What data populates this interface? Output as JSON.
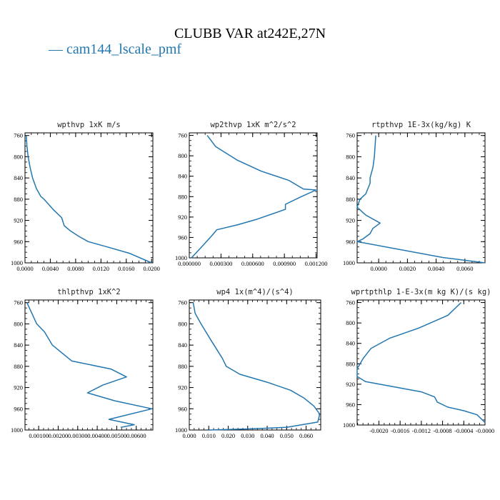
{
  "figure": {
    "title": "CLUBB VAR at242E,27N",
    "legend": {
      "marker": "—",
      "label": "cam144_lscale_pmf"
    },
    "colors": {
      "line": "#2277b0",
      "axis": "#000000"
    }
  },
  "chart_data": [
    {
      "type": "line",
      "title": "wpthvp  1xK m/s",
      "xlim": [
        0,
        0.0202
      ],
      "ylim": [
        1000,
        755
      ],
      "xticks": [
        0,
        0.004,
        0.008,
        0.012,
        0.016,
        0.02
      ],
      "xtick_labels": [
        "0.0000",
        "0.0040",
        "0.0080",
        "0.0120",
        "0.0160",
        "0.0200"
      ],
      "yticks": [
        760,
        800,
        840,
        880,
        920,
        960,
        1000
      ],
      "ytick_labels": [
        "760",
        "800",
        "840",
        "880",
        "920",
        "960",
        "1000"
      ],
      "series": [
        {
          "x": [
            0.0002,
            0.0003,
            0.0005,
            0.0008,
            0.0012,
            0.0018,
            0.0025,
            0.003,
            0.0045,
            0.0058,
            0.0062,
            0.0072,
            0.0085,
            0.01,
            0.013,
            0.0165,
            0.02
          ],
          "y": [
            760,
            780,
            800,
            820,
            840,
            860,
            875,
            880,
            900,
            915,
            930,
            940,
            950,
            960,
            970,
            982,
            1000
          ]
        }
      ]
    },
    {
      "type": "line",
      "title": "wp2thvp  1xK m^2/s^2",
      "xlim": [
        0,
        0.00121
      ],
      "ylim": [
        1000,
        755
      ],
      "xticks": [
        0,
        0.0003,
        0.0006,
        0.0009,
        0.0012
      ],
      "xtick_labels": [
        "0.000000",
        "0.000300",
        "0.000600",
        "0.000900",
        "0.001200"
      ],
      "yticks": [
        760,
        800,
        840,
        880,
        920,
        960,
        1000
      ],
      "ytick_labels": [
        "760",
        "800",
        "840",
        "880",
        "920",
        "960",
        "1000"
      ],
      "series": [
        {
          "x": [
            0.00017,
            0.00025,
            0.00045,
            0.00068,
            0.00094,
            0.00108,
            0.0012,
            0.00106,
            0.00091,
            0.00091,
            0.00063,
            0.00046,
            0.00026,
            0.00022,
            0.00011,
            2e-05
          ],
          "y": [
            760,
            782,
            808,
            830,
            848,
            865,
            867,
            880,
            895,
            905,
            925,
            935,
            945,
            955,
            980,
            1000
          ]
        }
      ]
    },
    {
      "type": "line",
      "title": "rtpthvp  1E-3x(kg/kg) K",
      "xlim": [
        -0.0015,
        0.0074
      ],
      "ylim": [
        1000,
        755
      ],
      "xticks": [
        0,
        0.002,
        0.004,
        0.006
      ],
      "xtick_labels": [
        "0.0000",
        "0.0020",
        "0.0040",
        "0.0060"
      ],
      "yticks": [
        760,
        800,
        840,
        880,
        920,
        960,
        1000
      ],
      "ytick_labels": [
        "760",
        "800",
        "840",
        "880",
        "920",
        "960",
        "1000"
      ],
      "series": [
        {
          "x": [
            -0.0002,
            -0.0003,
            -0.0004,
            -0.0006,
            -0.0006,
            -0.0009,
            -0.0013,
            -0.0015,
            -0.0011,
            -0.0009,
            0.0001,
            -0.0004,
            -0.0006,
            -0.0011,
            -0.0015,
            0.0045,
            0.0074
          ],
          "y": [
            760,
            800,
            820,
            840,
            850,
            870,
            880,
            895,
            905,
            910,
            925,
            935,
            945,
            955,
            960,
            990,
            1000
          ]
        }
      ]
    },
    {
      "type": "line",
      "title": "thlpthvp  1xK^2",
      "xlim": [
        0.0003,
        0.00685
      ],
      "ylim": [
        1000,
        755
      ],
      "xticks": [
        0.001,
        0.002,
        0.003,
        0.004,
        0.005,
        0.006
      ],
      "xtick_labels": [
        "0.00100",
        "0.00200",
        "0.00300",
        "0.00400",
        "0.00500",
        "0.00600"
      ],
      "yticks": [
        760,
        800,
        840,
        880,
        920,
        960,
        1000
      ],
      "ytick_labels": [
        "760",
        "800",
        "840",
        "880",
        "920",
        "960",
        "1000"
      ],
      "series": [
        {
          "x": [
            0.0004,
            0.0009,
            0.0013,
            0.0017,
            0.0027,
            0.0047,
            0.0055,
            0.0043,
            0.0035,
            0.0049,
            0.0068,
            0.0046,
            0.0059,
            0.0052
          ],
          "y": [
            760,
            800,
            815,
            840,
            870,
            885,
            900,
            915,
            930,
            945,
            960,
            980,
            990,
            995
          ]
        }
      ]
    },
    {
      "type": "line",
      "title": "wp4  1x(m^4)/(s^4)",
      "xlim": [
        0,
        0.0675
      ],
      "ylim": [
        1000,
        755
      ],
      "xticks": [
        0,
        0.01,
        0.02,
        0.03,
        0.04,
        0.05,
        0.06
      ],
      "xtick_labels": [
        "0.000",
        "0.010",
        "0.020",
        "0.030",
        "0.040",
        "0.050",
        "0.060"
      ],
      "yticks": [
        760,
        800,
        840,
        880,
        920,
        960,
        1000
      ],
      "ytick_labels": [
        "760",
        "800",
        "840",
        "880",
        "920",
        "960",
        "1000"
      ],
      "series": [
        {
          "x": [
            0.002,
            0.003,
            0.006,
            0.011,
            0.017,
            0.019,
            0.026,
            0.04,
            0.052,
            0.059,
            0.064,
            0.067,
            0.066,
            0.05,
            0.03,
            0.01
          ],
          "y": [
            760,
            780,
            800,
            830,
            865,
            880,
            895,
            910,
            925,
            940,
            955,
            970,
            985,
            995,
            998,
            1000
          ]
        }
      ]
    },
    {
      "type": "line",
      "title": "wprtpthlp  1-E-3x(m kg K)/(s kg)",
      "xlim": [
        -0.00241,
        0
      ],
      "ylim": [
        1000,
        755
      ],
      "xticks": [
        -0.002,
        -0.0016,
        -0.0012,
        -0.0008,
        -0.0004,
        0
      ],
      "xtick_labels": [
        "-0.0020",
        "-0.0016",
        "-0.0012",
        "-0.0008",
        "-0.0004",
        "-0.0000"
      ],
      "yticks": [
        760,
        800,
        840,
        880,
        920,
        960,
        1000
      ],
      "ytick_labels": [
        "760",
        "800",
        "840",
        "880",
        "920",
        "960",
        "1000"
      ],
      "series": [
        {
          "x": [
            -0.00045,
            -0.0007,
            -0.00125,
            -0.0018,
            -0.00215,
            -0.0023,
            -0.00241,
            -0.00241,
            -0.00225,
            -0.0012,
            -0.00095,
            -0.0009,
            -0.0007,
            -0.0004,
            -0.00015,
            0.0
          ],
          "y": [
            760,
            785,
            810,
            830,
            850,
            870,
            890,
            905,
            915,
            935,
            945,
            955,
            965,
            972,
            980,
            995
          ]
        }
      ]
    }
  ]
}
